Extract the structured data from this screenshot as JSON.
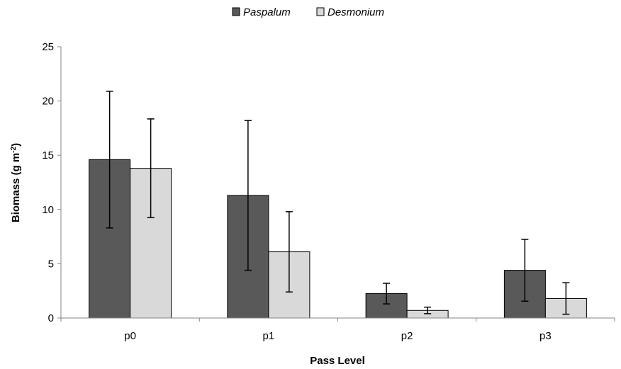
{
  "chart_data": {
    "type": "bar",
    "categories": [
      "p0",
      "p1",
      "p2",
      "p3"
    ],
    "series": [
      {
        "name": "Paspalum",
        "color": "#595959",
        "values": [
          14.6,
          11.3,
          2.25,
          4.4
        ],
        "error": [
          6.3,
          6.9,
          0.95,
          2.85
        ]
      },
      {
        "name": "Desmonium",
        "color": "#d9d9d9",
        "values": [
          13.8,
          6.1,
          0.7,
          1.8
        ],
        "error": [
          4.55,
          3.7,
          0.3,
          1.45
        ]
      }
    ],
    "xlabel": "Pass Level",
    "ylabel": "Biomass (g m",
    "ylabel_sup": "-2",
    "ylabel_end": ")",
    "ylim": [
      0,
      25
    ],
    "yticks": [
      0,
      5,
      10,
      15,
      20,
      25
    ],
    "legend_position": "top-center",
    "grid": false
  }
}
